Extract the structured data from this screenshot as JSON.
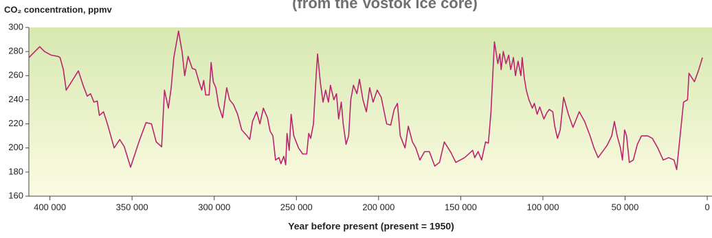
{
  "chart_data": {
    "type": "line",
    "title": "(from the Vostok ice core)",
    "y_label": "CO₂ concentration, ppmv",
    "x_label": "Year before present (present = 1950)",
    "color": "#b8246e",
    "xlim": [
      412800,
      -2900
    ],
    "ylim": [
      160,
      300
    ],
    "yticks": [
      160,
      180,
      200,
      220,
      240,
      260,
      280,
      300
    ],
    "xticks": [
      {
        "value": 400000,
        "label": "400 000"
      },
      {
        "value": 350000,
        "label": "350 000"
      },
      {
        "value": 300000,
        "label": "300 000"
      },
      {
        "value": 250000,
        "label": "250 000"
      },
      {
        "value": 200000,
        "label": "200 000"
      },
      {
        "value": 150000,
        "label": "150 000"
      },
      {
        "value": 100000,
        "label": "100 000"
      },
      {
        "value": 50000,
        "label": "50 000"
      },
      0
    ],
    "x": [
      412800,
      406200,
      403300,
      399200,
      395100,
      393800,
      391800,
      390100,
      386800,
      382700,
      379800,
      377300,
      375300,
      373200,
      371200,
      369900,
      367400,
      365000,
      360900,
      357500,
      354700,
      350900,
      345600,
      341500,
      338200,
      335300,
      332000,
      330300,
      327900,
      326200,
      324600,
      321700,
      319600,
      318000,
      315900,
      313400,
      311400,
      309300,
      307600,
      306400,
      305200,
      303100,
      301900,
      300600,
      299000,
      297300,
      294900,
      292400,
      290700,
      288300,
      285800,
      283300,
      280000,
      278400,
      276700,
      274200,
      272200,
      270100,
      267600,
      266000,
      264300,
      262700,
      260600,
      259400,
      257700,
      256500,
      255700,
      254400,
      253200,
      251600,
      248700,
      246200,
      243700,
      242500,
      241300,
      239600,
      238000,
      237100,
      235500,
      233800,
      232200,
      230500,
      229300,
      227200,
      225600,
      224300,
      222700,
      221500,
      219800,
      218200,
      216900,
      215300,
      213200,
      211600,
      209500,
      207400,
      205400,
      203300,
      200800,
      198400,
      195100,
      192600,
      190500,
      188500,
      186800,
      183900,
      181900,
      179400,
      177300,
      174900,
      172000,
      169100,
      165800,
      162900,
      160000,
      155900,
      153000,
      147600,
      142700,
      141500,
      139400,
      137300,
      134900,
      133200,
      131600,
      129500,
      127400,
      126200,
      125400,
      124100,
      122500,
      120800,
      119600,
      117900,
      116700,
      115100,
      113400,
      112600,
      111300,
      110100,
      108500,
      106400,
      105200,
      103500,
      101900,
      99400,
      97700,
      96100,
      94000,
      92800,
      91100,
      89500,
      87400,
      84500,
      81700,
      77900,
      74600,
      71300,
      68900,
      66400,
      61000,
      58100,
      56500,
      54800,
      52800,
      51600,
      50300,
      49100,
      47400,
      45000,
      42500,
      40000,
      36300,
      33400,
      30100,
      26800,
      23500,
      20200,
      18600,
      16500,
      14400,
      12000,
      11100,
      7800,
      5400,
      2900
    ],
    "values": [
      275,
      284,
      280,
      277,
      276,
      275,
      265,
      248,
      255,
      264,
      252,
      243,
      245,
      238,
      239,
      227,
      230,
      220,
      200,
      207,
      201,
      184,
      206,
      221,
      220,
      205,
      201,
      248,
      233,
      250,
      275,
      297,
      280,
      260,
      276,
      266,
      265,
      255,
      248,
      256,
      244,
      244,
      271,
      255,
      250,
      235,
      225,
      250,
      240,
      236,
      228,
      215,
      210,
      207,
      222,
      230,
      220,
      233,
      225,
      214,
      210,
      190,
      192,
      187,
      193,
      186,
      212,
      198,
      228,
      210,
      200,
      195,
      195,
      212,
      208,
      220,
      260,
      278,
      255,
      238,
      248,
      238,
      252,
      240,
      245,
      224,
      238,
      220,
      203,
      210,
      240,
      252,
      245,
      257,
      240,
      230,
      250,
      238,
      248,
      242,
      220,
      219,
      232,
      237,
      210,
      200,
      218,
      205,
      200,
      190,
      197,
      197,
      185,
      188,
      205,
      196,
      188,
      192,
      198,
      192,
      197,
      190,
      205,
      204,
      230,
      288,
      270,
      278,
      265,
      280,
      270,
      277,
      265,
      275,
      260,
      272,
      260,
      275,
      258,
      248,
      240,
      233,
      237,
      228,
      234,
      224,
      229,
      232,
      230,
      218,
      208,
      215,
      242,
      228,
      217,
      230,
      222,
      210,
      200,
      192,
      202,
      210,
      222,
      210,
      200,
      190,
      215,
      210,
      188,
      190,
      203,
      210,
      210,
      208,
      200,
      190,
      192,
      190,
      182,
      210,
      238,
      240,
      262,
      255,
      264,
      275
    ]
  }
}
